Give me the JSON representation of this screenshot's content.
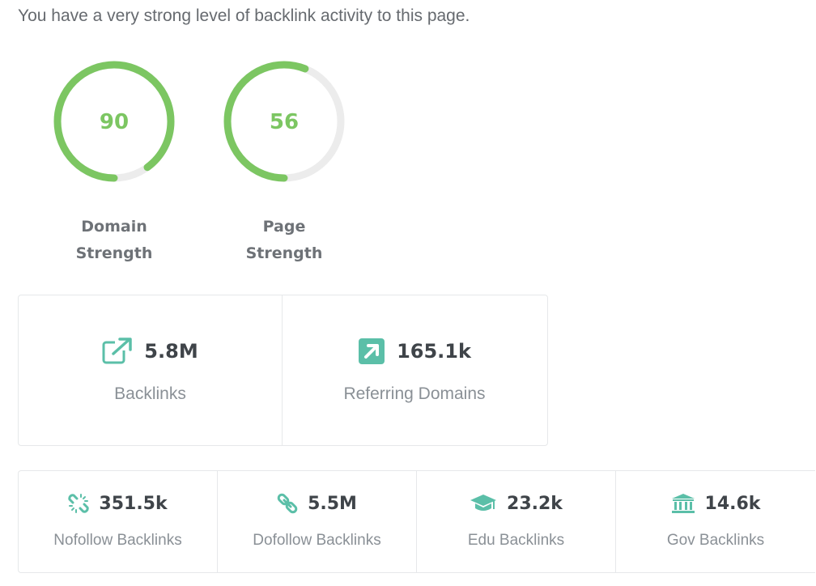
{
  "intro_text": "You have a very strong level of backlink activity to this page.",
  "gauges": [
    {
      "value": "90",
      "percent": 90,
      "label_line1": "Domain",
      "label_line2": "Strength"
    },
    {
      "value": "56",
      "percent": 56,
      "label_line1": "Page",
      "label_line2": "Strength"
    }
  ],
  "summary": [
    {
      "value": "5.8M",
      "label": "Backlinks",
      "icon": "external-link-icon"
    },
    {
      "value": "165.1k",
      "label": "Referring Domains",
      "icon": "arrow-up-right-square-icon"
    }
  ],
  "details": [
    {
      "value": "351.5k",
      "label": "Nofollow Backlinks",
      "icon": "broken-link-icon"
    },
    {
      "value": "5.5M",
      "label": "Dofollow Backlinks",
      "icon": "link-icon"
    },
    {
      "value": "23.2k",
      "label": "Edu Backlinks",
      "icon": "graduation-cap-icon"
    },
    {
      "value": "14.6k",
      "label": "Gov Backlinks",
      "icon": "government-building-icon"
    }
  ],
  "colors": {
    "gauge_fill": "#7cc662",
    "gauge_track": "#ececec",
    "icon_teal": "#5bbfa8",
    "value_text": "#3f4449",
    "label_text": "#8a9096"
  }
}
